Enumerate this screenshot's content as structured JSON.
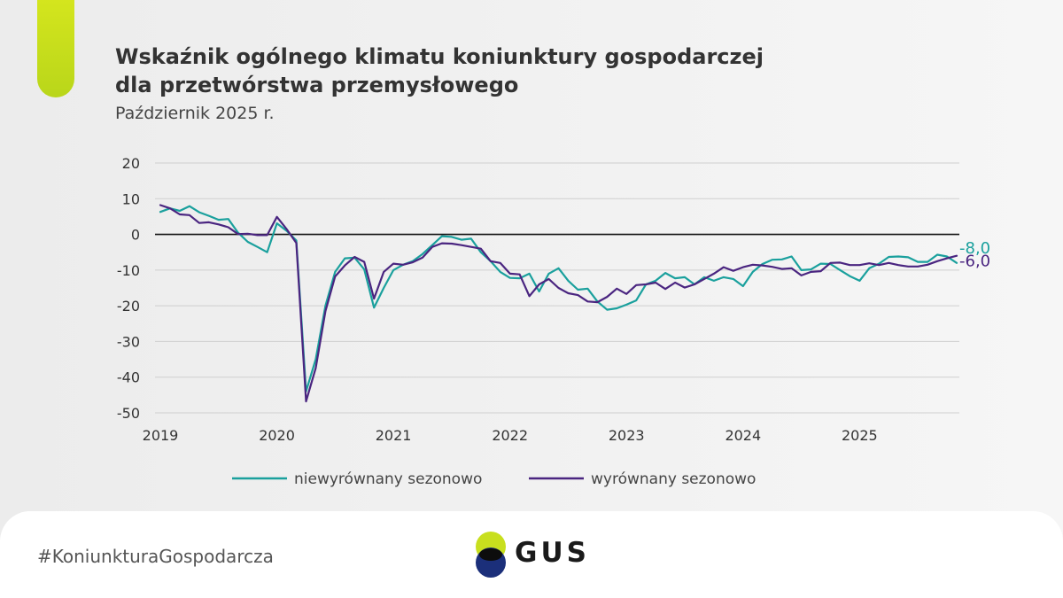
{
  "header": {
    "title_line1": "Wskaźnik ogólnego klimatu koniunktury gospodarczej",
    "title_line2": "dla przetwórstwa przemysłowego",
    "subtitle": "Październik 2025 r."
  },
  "footer": {
    "hashtag": "#KoniunkturaGospodarcza",
    "logo_text": "GUS"
  },
  "colors": {
    "series_nsa": "#1aa09d",
    "series_sa": "#4a2580",
    "accent": "#c8df1e",
    "logo_green": "#c8df1e",
    "logo_navy": "#1b2f7a"
  },
  "chart_data": {
    "type": "line",
    "x_start": "2019-01",
    "x_tick_labels": [
      "2019",
      "2020",
      "2021",
      "2022",
      "2023",
      "2024",
      "2025"
    ],
    "ylim": [
      -50,
      20
    ],
    "y_ticks": [
      "20",
      "10",
      "0",
      "-10",
      "-20",
      "-30",
      "-40",
      "-50"
    ],
    "grid": true,
    "legend_position": "bottom",
    "series": [
      {
        "name": "niewyrównany sezonowo",
        "last_label": "-8,0",
        "values": [
          6.3,
          7.3,
          6.6,
          7.9,
          6.2,
          5.2,
          4.1,
          4.3,
          0.5,
          -2.1,
          -3.5,
          -5.0,
          3.1,
          1.0,
          -1.7,
          -44.0,
          -35.0,
          -20.0,
          -10.5,
          -6.7,
          -6.5,
          -9.8,
          -20.5,
          -15.0,
          -10.0,
          -8.5,
          -7.5,
          -5.5,
          -3.0,
          -0.5,
          -0.7,
          -1.5,
          -1.2,
          -5.0,
          -7.5,
          -10.5,
          -12.2,
          -12.3,
          -11.0,
          -16.0,
          -11.0,
          -9.5,
          -13.0,
          -15.5,
          -15.2,
          -18.8,
          -21.1,
          -20.7,
          -19.7,
          -18.5,
          -14.0,
          -13.0,
          -10.8,
          -12.3,
          -12.0,
          -14.0,
          -12.0,
          -13.0,
          -12.0,
          -12.5,
          -14.5,
          -10.5,
          -8.3,
          -7.1,
          -7.0,
          -6.2,
          -10.0,
          -9.8,
          -8.2,
          -8.3,
          -10.0,
          -11.7,
          -13.0,
          -9.5,
          -8.2,
          -6.3,
          -6.2,
          -6.4,
          -7.7,
          -7.7,
          -5.7,
          -6.2,
          -8.0
        ]
      },
      {
        "name": "wyrównany sezonowo",
        "last_label": "-6,0",
        "values": [
          8.2,
          7.3,
          5.6,
          5.4,
          3.2,
          3.4,
          2.8,
          2.0,
          0.1,
          0.2,
          -0.2,
          -0.2,
          4.9,
          1.5,
          -2.4,
          -46.8,
          -37.5,
          -21.5,
          -11.8,
          -8.7,
          -6.3,
          -7.7,
          -18.0,
          -10.5,
          -8.2,
          -8.5,
          -7.8,
          -6.5,
          -3.5,
          -2.5,
          -2.6,
          -3.0,
          -3.5,
          -4.0,
          -7.5,
          -8.0,
          -11.0,
          -11.2,
          -17.3,
          -14.0,
          -12.5,
          -15.0,
          -16.5,
          -17.0,
          -18.8,
          -19.0,
          -17.5,
          -15.2,
          -16.7,
          -14.2,
          -14.0,
          -13.5,
          -15.3,
          -13.5,
          -14.9,
          -14.0,
          -12.5,
          -11.0,
          -9.2,
          -10.2,
          -9.2,
          -8.5,
          -8.7,
          -9.1,
          -9.7,
          -9.5,
          -11.5,
          -10.5,
          -10.3,
          -8.0,
          -7.9,
          -8.6,
          -8.6,
          -8.1,
          -8.6,
          -8.0,
          -8.6,
          -9.0,
          -9.0,
          -8.5,
          -7.5,
          -6.7,
          -6.0
        ]
      }
    ]
  }
}
